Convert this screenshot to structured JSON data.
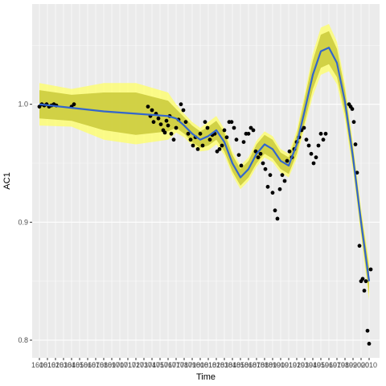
{
  "chart_data": {
    "type": "scatter",
    "title": "",
    "xlabel": "Time",
    "ylabel": "AC1",
    "xlim": [
      1591,
      2023
    ],
    "ylim": [
      0.785,
      1.085
    ],
    "y_ticks": [
      0.8,
      0.9,
      1.0
    ],
    "x_ticks": [
      1600,
      1610,
      1620,
      1630,
      1640,
      1650,
      1660,
      1670,
      1680,
      1690,
      1700,
      1710,
      1720,
      1730,
      1740,
      1750,
      1760,
      1770,
      1780,
      1790,
      1800,
      1810,
      1820,
      1830,
      1840,
      1850,
      1860,
      1870,
      1880,
      1890,
      1900,
      1910,
      1920,
      1930,
      1940,
      1950,
      1960,
      1970,
      1980,
      1990,
      2000,
      2010
    ],
    "x_tick_labels": [
      "1600",
      "1610",
      "1620",
      "1630",
      "1640",
      "1650",
      "1660",
      "1670",
      "1680",
      "1690",
      "1700",
      "1710",
      "1720",
      "1730",
      "1740",
      "1750",
      "1760",
      "1770",
      "1780",
      "1790",
      "1800",
      "1810",
      "1820",
      "1830",
      "1840",
      "1850",
      "1860",
      "1870",
      "1880",
      "1890",
      "1900",
      "1910",
      "1920",
      "1930",
      "1940",
      "1950",
      "1960",
      "1970",
      "1980",
      "1990",
      "2000",
      "2010"
    ],
    "grid": true,
    "colors": {
      "panel": "#ebebeb",
      "grid_major": "#ffffff",
      "grid_minor": "#f5f5f5",
      "points": "#000000",
      "line": "#3366cc",
      "outer_band": "#ffff66",
      "inner_band": "#c9c93a"
    },
    "series": [
      {
        "kind": "points",
        "x": [
          1600,
          1603,
          1606,
          1609,
          1612,
          1615,
          1618,
          1621,
          1640,
          1643,
          1735,
          1738,
          1740,
          1742,
          1745,
          1748,
          1751,
          1754,
          1756,
          1758,
          1760,
          1762,
          1764,
          1767,
          1770,
          1773,
          1776,
          1779,
          1782,
          1785,
          1788,
          1791,
          1794,
          1797,
          1800,
          1803,
          1806,
          1809,
          1812,
          1815,
          1818,
          1821,
          1824,
          1827,
          1830,
          1833,
          1836,
          1839,
          1842,
          1845,
          1848,
          1851,
          1854,
          1857,
          1860,
          1863,
          1866,
          1869,
          1872,
          1875,
          1878,
          1881,
          1884,
          1887,
          1890,
          1893,
          1896,
          1899,
          1902,
          1905,
          1908,
          1911,
          1914,
          1917,
          1920,
          1923,
          1926,
          1929,
          1932,
          1935,
          1938,
          1941,
          1944,
          1947,
          1950,
          1953,
          1956,
          1985,
          1987,
          1989,
          1991,
          1993,
          1995,
          1998,
          2000,
          2002,
          2004,
          2006,
          2008,
          2010,
          2012
        ],
        "y": [
          0.998,
          1.0,
          0.999,
          1.0,
          0.998,
          0.999,
          1.0,
          0.999,
          0.998,
          1.0,
          0.998,
          0.99,
          0.995,
          0.985,
          0.992,
          0.988,
          0.983,
          0.978,
          0.976,
          0.986,
          0.982,
          0.99,
          0.975,
          0.97,
          0.98,
          0.987,
          1.0,
          0.995,
          0.985,
          0.975,
          0.97,
          0.965,
          0.972,
          0.962,
          0.975,
          0.965,
          0.985,
          0.98,
          0.97,
          0.974,
          0.975,
          0.96,
          0.962,
          0.965,
          0.978,
          0.972,
          0.985,
          0.985,
          0.98,
          0.97,
          0.957,
          0.948,
          0.968,
          0.975,
          0.975,
          0.98,
          0.978,
          0.96,
          0.955,
          0.958,
          0.95,
          0.945,
          0.93,
          0.94,
          0.925,
          0.91,
          0.903,
          0.928,
          0.94,
          0.935,
          0.952,
          0.96,
          0.955,
          0.962,
          0.968,
          0.972,
          0.978,
          0.98,
          0.97,
          0.965,
          0.958,
          0.95,
          0.955,
          0.965,
          0.975,
          0.97,
          0.975,
          1.0,
          0.998,
          0.996,
          0.985,
          0.966,
          0.942,
          0.88,
          0.85,
          0.852,
          0.842,
          0.85,
          0.808,
          0.797,
          0.86
        ]
      },
      {
        "kind": "smooth",
        "x": [
          1600,
          1640,
          1680,
          1720,
          1760,
          1770,
          1780,
          1790,
          1800,
          1810,
          1820,
          1830,
          1840,
          1850,
          1860,
          1870,
          1880,
          1890,
          1900,
          1910,
          1920,
          1930,
          1940,
          1950,
          1960,
          1970,
          1980,
          1990,
          2000,
          2010
        ],
        "y": [
          1.0,
          0.997,
          0.994,
          0.992,
          0.99,
          0.988,
          0.982,
          0.975,
          0.97,
          0.973,
          0.978,
          0.968,
          0.95,
          0.938,
          0.945,
          0.958,
          0.966,
          0.962,
          0.952,
          0.948,
          0.966,
          0.995,
          1.025,
          1.045,
          1.048,
          1.035,
          1.002,
          0.955,
          0.9,
          0.85
        ],
        "outer_half_width": [
          0.018,
          0.016,
          0.024,
          0.026,
          0.02,
          0.012,
          0.01,
          0.01,
          0.01,
          0.012,
          0.012,
          0.011,
          0.01,
          0.01,
          0.01,
          0.011,
          0.011,
          0.011,
          0.01,
          0.01,
          0.012,
          0.014,
          0.018,
          0.02,
          0.02,
          0.018,
          0.015,
          0.012,
          0.012,
          0.016
        ],
        "inner_half_width": [
          0.012,
          0.011,
          0.016,
          0.018,
          0.013,
          0.008,
          0.007,
          0.007,
          0.007,
          0.008,
          0.008,
          0.008,
          0.007,
          0.007,
          0.007,
          0.008,
          0.008,
          0.008,
          0.007,
          0.007,
          0.008,
          0.01,
          0.012,
          0.014,
          0.014,
          0.012,
          0.01,
          0.008,
          0.008,
          0.011
        ]
      }
    ]
  }
}
